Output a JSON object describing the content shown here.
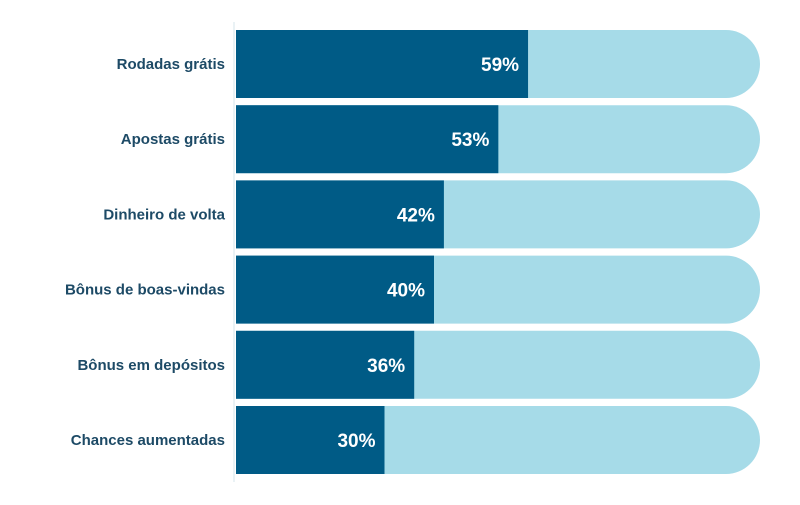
{
  "chart_data": {
    "type": "bar",
    "orientation": "horizontal",
    "title": "",
    "xlabel": "",
    "ylabel": "",
    "xlim": [
      0,
      100
    ],
    "categories": [
      "Rodadas grátis",
      "Apostas grátis",
      "Dinheiro de volta",
      "Bônus de boas-vindas",
      "Bônus em depósitos",
      "Chances aumentadas"
    ],
    "values": [
      59,
      53,
      42,
      40,
      36,
      30
    ],
    "value_labels": [
      "59%",
      "53%",
      "42%",
      "40%",
      "36%",
      "30%"
    ],
    "grid": false,
    "legend": "none",
    "colors": {
      "bar": "#005b86",
      "track": "#a6dbe8",
      "label": "#1d4a66"
    }
  }
}
